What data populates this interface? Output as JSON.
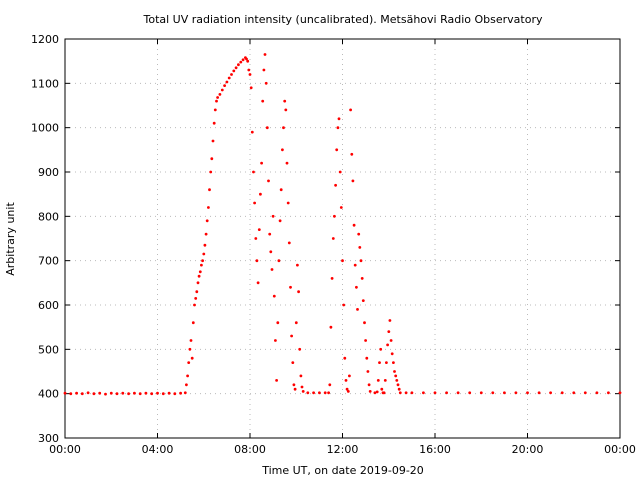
{
  "chart_data": {
    "type": "scatter",
    "title": "Total UV radiation intensity (uncalibrated). Metsähovi Radio Observatory",
    "xlabel": "Time UT, on date 2019-09-20",
    "ylabel": "Arbitrary unit",
    "xlim": [
      0,
      24
    ],
    "ylim": [
      300,
      1200
    ],
    "x_tick_labels": [
      "00:00",
      "04:00",
      "08:00",
      "12:00",
      "16:00",
      "20:00",
      "00:00"
    ],
    "y_ticks": [
      300,
      400,
      500,
      600,
      700,
      800,
      900,
      1000,
      1100,
      1200
    ],
    "grid": true,
    "series_color": "#ff0000",
    "series": [
      {
        "points": [
          [
            0.0,
            401
          ],
          [
            0.25,
            400
          ],
          [
            0.5,
            401
          ],
          [
            0.75,
            400
          ],
          [
            1.0,
            402
          ],
          [
            1.25,
            400
          ],
          [
            1.5,
            401
          ],
          [
            1.75,
            399
          ],
          [
            2.0,
            401
          ],
          [
            2.25,
            400
          ],
          [
            2.5,
            401
          ],
          [
            2.75,
            400
          ],
          [
            3.0,
            401
          ],
          [
            3.25,
            400
          ],
          [
            3.5,
            401
          ],
          [
            3.75,
            400
          ],
          [
            4.0,
            401
          ],
          [
            4.25,
            400
          ],
          [
            4.5,
            401
          ],
          [
            4.75,
            400
          ],
          [
            5.0,
            401
          ],
          [
            5.2,
            402
          ],
          [
            5.25,
            420
          ],
          [
            5.3,
            440
          ],
          [
            5.35,
            470
          ],
          [
            5.4,
            500
          ],
          [
            5.45,
            520
          ],
          [
            5.5,
            480
          ],
          [
            5.55,
            560
          ],
          [
            5.6,
            600
          ],
          [
            5.65,
            615
          ],
          [
            5.7,
            630
          ],
          [
            5.75,
            650
          ],
          [
            5.8,
            665
          ],
          [
            5.85,
            675
          ],
          [
            5.9,
            690
          ],
          [
            5.95,
            700
          ],
          [
            6.0,
            715
          ],
          [
            6.05,
            735
          ],
          [
            6.1,
            760
          ],
          [
            6.15,
            790
          ],
          [
            6.2,
            820
          ],
          [
            6.25,
            860
          ],
          [
            6.3,
            900
          ],
          [
            6.35,
            930
          ],
          [
            6.4,
            970
          ],
          [
            6.45,
            1010
          ],
          [
            6.5,
            1040
          ],
          [
            6.55,
            1060
          ],
          [
            6.6,
            1068
          ],
          [
            6.7,
            1075
          ],
          [
            6.8,
            1085
          ],
          [
            6.9,
            1095
          ],
          [
            7.0,
            1103
          ],
          [
            7.1,
            1112
          ],
          [
            7.2,
            1120
          ],
          [
            7.3,
            1128
          ],
          [
            7.4,
            1135
          ],
          [
            7.5,
            1142
          ],
          [
            7.6,
            1148
          ],
          [
            7.7,
            1153
          ],
          [
            7.8,
            1158
          ],
          [
            7.85,
            1155
          ],
          [
            7.9,
            1150
          ],
          [
            7.95,
            1130
          ],
          [
            8.0,
            1120
          ],
          [
            8.05,
            1090
          ],
          [
            8.1,
            990
          ],
          [
            8.15,
            900
          ],
          [
            8.2,
            830
          ],
          [
            8.25,
            750
          ],
          [
            8.3,
            700
          ],
          [
            8.35,
            650
          ],
          [
            8.4,
            770
          ],
          [
            8.45,
            850
          ],
          [
            8.5,
            920
          ],
          [
            8.55,
            1060
          ],
          [
            8.6,
            1130
          ],
          [
            8.65,
            1165
          ],
          [
            8.7,
            1100
          ],
          [
            8.75,
            1000
          ],
          [
            8.8,
            880
          ],
          [
            8.85,
            760
          ],
          [
            8.9,
            720
          ],
          [
            8.95,
            680
          ],
          [
            9.0,
            800
          ],
          [
            9.05,
            620
          ],
          [
            9.1,
            520
          ],
          [
            9.15,
            430
          ],
          [
            9.2,
            560
          ],
          [
            9.25,
            700
          ],
          [
            9.3,
            790
          ],
          [
            9.35,
            860
          ],
          [
            9.4,
            950
          ],
          [
            9.45,
            1000
          ],
          [
            9.5,
            1060
          ],
          [
            9.55,
            1040
          ],
          [
            9.6,
            920
          ],
          [
            9.65,
            830
          ],
          [
            9.7,
            740
          ],
          [
            9.75,
            640
          ],
          [
            9.8,
            530
          ],
          [
            9.85,
            470
          ],
          [
            9.9,
            420
          ],
          [
            9.95,
            410
          ],
          [
            10.0,
            560
          ],
          [
            10.05,
            690
          ],
          [
            10.1,
            630
          ],
          [
            10.15,
            500
          ],
          [
            10.2,
            440
          ],
          [
            10.25,
            415
          ],
          [
            10.3,
            405
          ],
          [
            10.5,
            402
          ],
          [
            10.75,
            402
          ],
          [
            11.0,
            402
          ],
          [
            11.25,
            402
          ],
          [
            11.4,
            402
          ],
          [
            11.45,
            420
          ],
          [
            11.5,
            550
          ],
          [
            11.55,
            660
          ],
          [
            11.6,
            750
          ],
          [
            11.65,
            800
          ],
          [
            11.7,
            870
          ],
          [
            11.75,
            950
          ],
          [
            11.8,
            1000
          ],
          [
            11.85,
            1020
          ],
          [
            11.9,
            900
          ],
          [
            11.95,
            820
          ],
          [
            12.0,
            700
          ],
          [
            12.05,
            600
          ],
          [
            12.1,
            480
          ],
          [
            12.15,
            430
          ],
          [
            12.2,
            410
          ],
          [
            12.25,
            405
          ],
          [
            12.3,
            440
          ],
          [
            12.35,
            1040
          ],
          [
            12.4,
            940
          ],
          [
            12.45,
            880
          ],
          [
            12.5,
            780
          ],
          [
            12.55,
            690
          ],
          [
            12.6,
            640
          ],
          [
            12.65,
            590
          ],
          [
            12.7,
            760
          ],
          [
            12.75,
            730
          ],
          [
            12.8,
            700
          ],
          [
            12.85,
            660
          ],
          [
            12.9,
            610
          ],
          [
            12.95,
            560
          ],
          [
            13.0,
            520
          ],
          [
            13.05,
            480
          ],
          [
            13.1,
            450
          ],
          [
            13.15,
            420
          ],
          [
            13.2,
            405
          ],
          [
            13.4,
            402
          ],
          [
            13.5,
            404
          ],
          [
            13.55,
            430
          ],
          [
            13.6,
            470
          ],
          [
            13.65,
            500
          ],
          [
            13.7,
            410
          ],
          [
            13.75,
            402
          ],
          [
            13.8,
            402
          ],
          [
            13.85,
            430
          ],
          [
            13.9,
            470
          ],
          [
            13.95,
            510
          ],
          [
            14.0,
            540
          ],
          [
            14.05,
            565
          ],
          [
            14.1,
            520
          ],
          [
            14.15,
            490
          ],
          [
            14.2,
            470
          ],
          [
            14.25,
            450
          ],
          [
            14.3,
            440
          ],
          [
            14.35,
            430
          ],
          [
            14.4,
            420
          ],
          [
            14.45,
            410
          ],
          [
            14.5,
            402
          ],
          [
            14.75,
            402
          ],
          [
            15.0,
            402
          ],
          [
            15.5,
            402
          ],
          [
            16.0,
            402
          ],
          [
            16.5,
            402
          ],
          [
            17.0,
            402
          ],
          [
            17.5,
            402
          ],
          [
            18.0,
            402
          ],
          [
            18.5,
            402
          ],
          [
            19.0,
            402
          ],
          [
            19.5,
            402
          ],
          [
            20.0,
            402
          ],
          [
            20.5,
            402
          ],
          [
            21.0,
            402
          ],
          [
            21.5,
            402
          ],
          [
            22.0,
            402
          ],
          [
            22.5,
            402
          ],
          [
            23.0,
            402
          ],
          [
            23.5,
            402
          ],
          [
            24.0,
            402
          ]
        ]
      }
    ]
  }
}
